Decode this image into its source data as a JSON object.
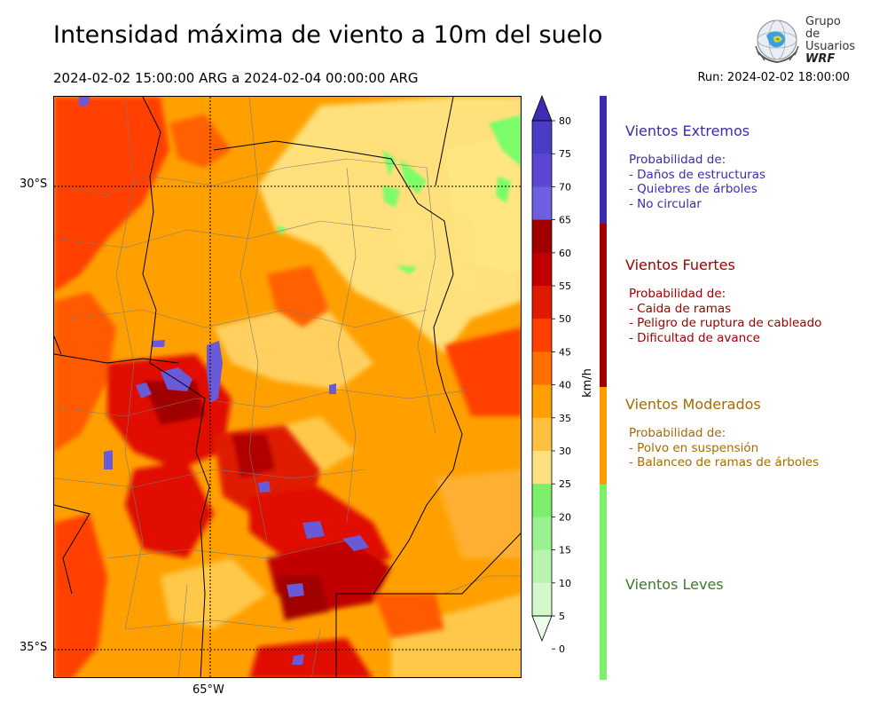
{
  "header": {
    "title": "Intensidad máxima de viento a 10m del suelo",
    "period": "2024-02-02 15:00:00 ARG  a  2024-02-04 00:00:00 ARG",
    "run": "Run: 2024-02-02 18:00:00"
  },
  "logo": {
    "line1": "Grupo de",
    "line2": "Usuarios",
    "line3": "WRF"
  },
  "map": {
    "lat_labels": [
      "30°S",
      "35°S"
    ],
    "lon_labels": [
      "65°W"
    ],
    "field_colors": {
      "light_yellow": "#ffe680",
      "yellow_orange": "#ffc84a",
      "orange": "#ffa000",
      "dark_orange": "#ff7a00",
      "red_orange": "#ff4000",
      "red": "#e01000",
      "dark_red": "#b00000",
      "maroon": "#a00000",
      "purple": "#6a5ad8",
      "green": "#7dfc6a"
    }
  },
  "colorbar": {
    "unit": "km/h",
    "ticks": [
      "80",
      "75",
      "70",
      "65",
      "60",
      "55",
      "50",
      "45",
      "40",
      "35",
      "30",
      "25",
      "20",
      "15",
      "10",
      "5",
      "0"
    ],
    "colors": [
      "#3f2cb4",
      "#4b3cc4",
      "#5a48d2",
      "#6e5ee0",
      "#a00000",
      "#c00000",
      "#e01a00",
      "#ff4000",
      "#ff7000",
      "#ffa000",
      "#ffc040",
      "#ffe080",
      "#7cf06a",
      "#98f090",
      "#b8f4b0",
      "#d4f8cc",
      "#eafcea"
    ]
  },
  "legend": {
    "categories": [
      {
        "title": "Vientos Extremos",
        "color": "#3b2bb0",
        "bar_color": "#3b2bb0",
        "lines": [
          "Probabilidad de:",
          "- Daños de estructuras",
          "- Quiebres de árboles",
          "- No circular"
        ]
      },
      {
        "title": "Vientos Fuertes",
        "color": "#a00000",
        "bar_color": "#a00000",
        "lines": [
          "Probabilidad de:",
          "- Caida de ramas",
          "- Peligro de ruptura de cableado",
          "- Dificultad de avance"
        ]
      },
      {
        "title": "Vientos Moderados",
        "color": "#a86a00",
        "bar_color": "#ff9a00",
        "lines": [
          "Probabilidad de:",
          "- Polvo en suspensión",
          "- Balanceo de ramas de árboles"
        ]
      },
      {
        "title": "Vientos Leves",
        "color": "#3a7a2a",
        "bar_color": "#7cf06a",
        "lines": []
      }
    ]
  }
}
